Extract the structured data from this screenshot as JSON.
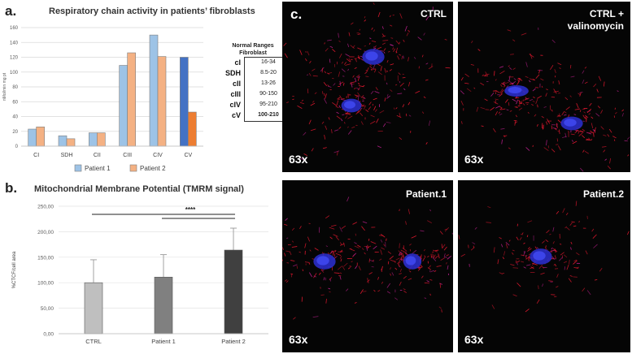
{
  "panel_a": {
    "letter": "a.",
    "title": "Respiratory chain activity in patients’ fibroblasts",
    "normal_ranges": {
      "title_line1": "Normal Ranges",
      "title_line2": "Fibroblast",
      "rows": [
        {
          "label": "cI",
          "range": "16-34"
        },
        {
          "label": "SDH",
          "range": "8.5-20"
        },
        {
          "label": "cII",
          "range": "13-26"
        },
        {
          "label": "cIII",
          "range": "90-150"
        },
        {
          "label": "cIV",
          "range": "95-210"
        },
        {
          "label": "cV",
          "range": "100-210"
        }
      ]
    }
  },
  "panel_b": {
    "letter": "b.",
    "title": "Mitochondrial Membrane Potential (TMRM signal)",
    "significance": "****"
  },
  "panel_c": {
    "letter": "c.",
    "quadrants": [
      {
        "label": "CTRL",
        "magnification": "63x"
      },
      {
        "label_line1": "CTRL +",
        "label_line2": "valinomycin",
        "magnification": "63x"
      },
      {
        "label": "Patient.1",
        "magnification": "63x"
      },
      {
        "label": "Patient.2",
        "magnification": "63x"
      }
    ]
  },
  "chart_data": [
    {
      "type": "bar",
      "title": "Respiratory chain activity in patients’ fibroblasts",
      "ylabel": "nMol/min mg pt",
      "xlabel": "",
      "ylim": [
        0,
        160
      ],
      "yticks": [
        0,
        20,
        40,
        60,
        80,
        100,
        120,
        140,
        160
      ],
      "categories": [
        "CI",
        "SDH",
        "CII",
        "CIII",
        "CIV",
        "CV"
      ],
      "series": [
        {
          "name": "Patient 1",
          "values": [
            23,
            14,
            18,
            109,
            150,
            120
          ],
          "color": "#9dc3e6"
        },
        {
          "name": "Patient 2",
          "values": [
            26,
            10,
            18,
            126,
            121,
            46
          ],
          "color": "#f4b183"
        }
      ],
      "highlight": {
        "category": "CV",
        "colors": {
          "Patient 1": "#4472c4",
          "Patient 2": "#ed7d31"
        }
      },
      "legend_position": "bottom",
      "grid": true
    },
    {
      "type": "bar",
      "title": "Mitochondrial Membrane Potential (TMRM signal)",
      "ylabel": "%CTCF/cell area",
      "xlabel": "",
      "ylim": [
        0,
        250
      ],
      "yticks": [
        "0,00",
        "50,00",
        "100,00",
        "150,00",
        "200,00",
        "250,00"
      ],
      "categories": [
        "CTRL",
        "Patient 1",
        "Patient 2"
      ],
      "values": [
        100,
        111,
        164
      ],
      "errors": [
        45,
        44,
        43
      ],
      "colors": [
        "#bfbfbf",
        "#808080",
        "#404040"
      ],
      "significance": "****",
      "grid": true
    }
  ]
}
